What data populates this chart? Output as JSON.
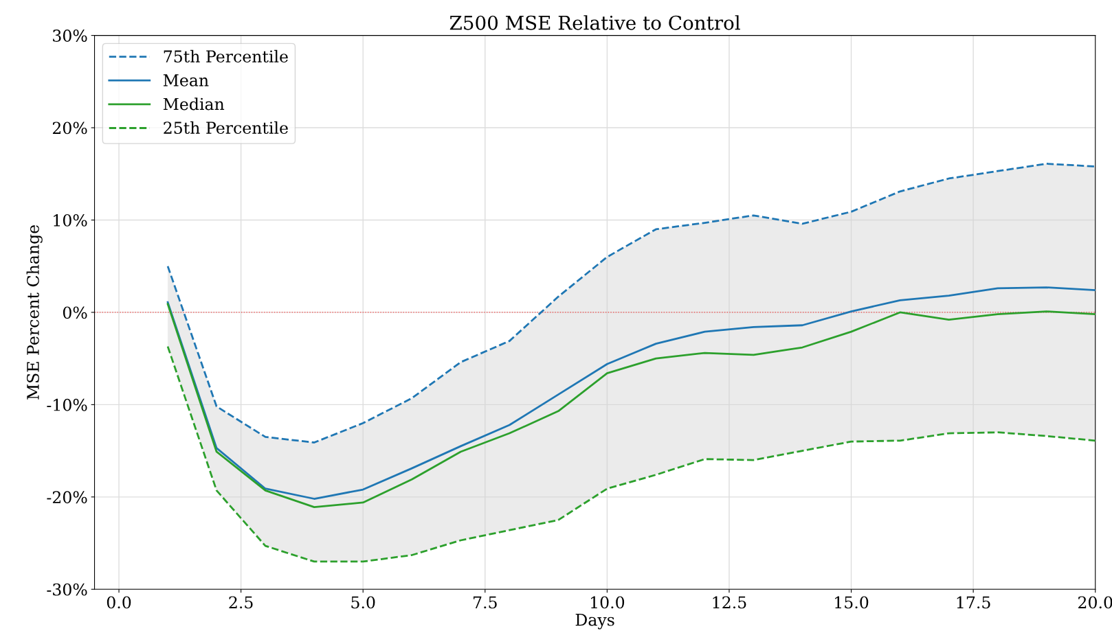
{
  "chart_data": {
    "type": "line",
    "title": "Z500 MSE Relative to Control",
    "xlabel": "Days",
    "ylabel": "MSE Percent Change",
    "x": [
      1,
      2,
      3,
      4,
      5,
      6,
      7,
      8,
      9,
      10,
      11,
      12,
      13,
      14,
      15,
      16,
      17,
      18,
      19,
      20
    ],
    "series": [
      {
        "name": "75th Percentile",
        "color": "#1f77b4",
        "line_style": "dashed",
        "values": [
          5.0,
          -10.2,
          -13.5,
          -14.1,
          -12.0,
          -9.3,
          -5.4,
          -3.1,
          1.7,
          6.0,
          9.0,
          9.7,
          10.5,
          9.6,
          10.9,
          13.1,
          14.5,
          15.3,
          16.1,
          15.8
        ]
      },
      {
        "name": "Mean",
        "color": "#1f77b4",
        "line_style": "solid",
        "values": [
          1.1,
          -14.7,
          -19.1,
          -20.2,
          -19.2,
          -16.9,
          -14.5,
          -12.2,
          -8.9,
          -5.6,
          -3.4,
          -2.1,
          -1.6,
          -1.4,
          0.1,
          1.3,
          1.8,
          2.6,
          2.7,
          2.4
        ],
        "lower": [
          -3.7,
          -19.3,
          -25.3,
          -27.0,
          -27.0,
          -26.3,
          -24.7,
          -23.6,
          -22.5,
          -19.1,
          -17.6,
          -15.9,
          -16.0,
          -15.0,
          -14.0,
          -13.9,
          -13.1,
          -13.0,
          -13.4,
          -13.9
        ],
        "upper": [
          5.0,
          -10.2,
          -13.5,
          -14.1,
          -12.0,
          -9.3,
          -5.4,
          -3.1,
          1.7,
          6.0,
          9.0,
          9.7,
          10.5,
          9.6,
          10.9,
          13.1,
          14.5,
          15.3,
          16.1,
          15.8
        ]
      },
      {
        "name": "Median",
        "color": "#2ca02c",
        "line_style": "solid",
        "values": [
          0.9,
          -15.1,
          -19.3,
          -21.1,
          -20.6,
          -18.1,
          -15.1,
          -13.1,
          -10.7,
          -6.6,
          -5.0,
          -4.4,
          -4.6,
          -3.8,
          -2.1,
          0.0,
          -0.8,
          -0.2,
          0.1,
          -0.2
        ]
      },
      {
        "name": "25th Percentile",
        "color": "#2ca02c",
        "line_style": "dashed",
        "values": [
          -3.7,
          -19.3,
          -25.3,
          -27.0,
          -27.0,
          -26.3,
          -24.7,
          -23.6,
          -22.5,
          -19.1,
          -17.6,
          -15.9,
          -16.0,
          -15.0,
          -14.0,
          -13.9,
          -13.1,
          -13.0,
          -13.4,
          -13.9
        ]
      }
    ],
    "xlim": [
      -0.5,
      20
    ],
    "ylim": [
      -30,
      30
    ],
    "xticks": [
      {
        "value": 0,
        "label": "0.0"
      },
      {
        "value": 2.5,
        "label": "2.5"
      },
      {
        "value": 5,
        "label": "5.0"
      },
      {
        "value": 7.5,
        "label": "7.5"
      },
      {
        "value": 10,
        "label": "10.0"
      },
      {
        "value": 12.5,
        "label": "12.5"
      },
      {
        "value": 15,
        "label": "15.0"
      },
      {
        "value": 17.5,
        "label": "17.5"
      },
      {
        "value": 20,
        "label": "20.0"
      }
    ],
    "yticks": [
      {
        "value": -30,
        "label": "-30%"
      },
      {
        "value": -20,
        "label": "-20%"
      },
      {
        "value": -10,
        "label": "-10%"
      },
      {
        "value": 0,
        "label": "0%"
      },
      {
        "value": 10,
        "label": "10%"
      },
      {
        "value": 20,
        "label": "20%"
      },
      {
        "value": 30,
        "label": "30%"
      }
    ],
    "ref_lines": [
      {
        "axis": "y",
        "value": 0,
        "color": "#ff0000",
        "line_style": "dotted"
      }
    ],
    "grid": true,
    "legend": "top left",
    "marker": "none"
  }
}
